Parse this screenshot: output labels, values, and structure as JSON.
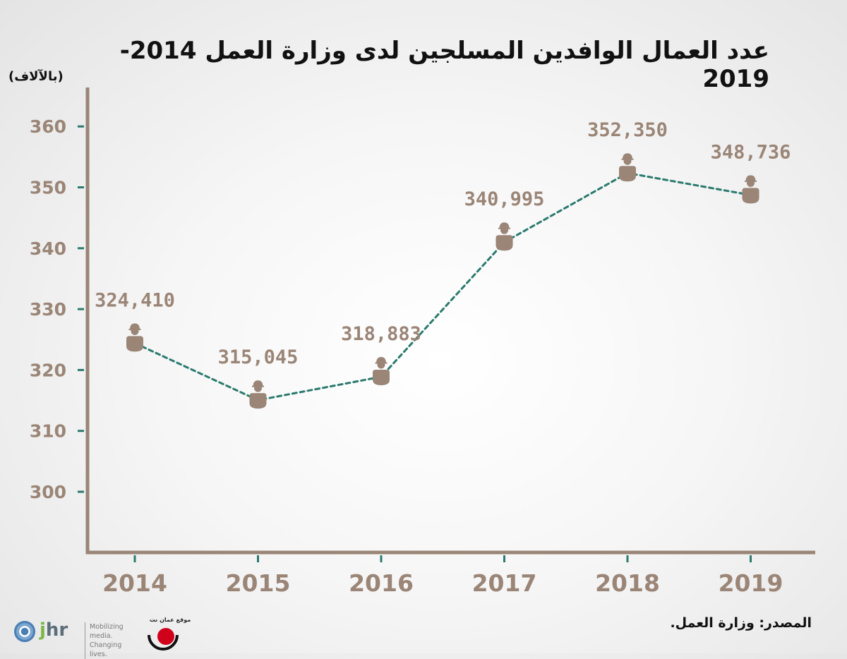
{
  "page": {
    "title": "عدد العمال الوافدين المسلجين لدى وزارة العمل 2014-2019",
    "unit_label": "(بالآلاف)",
    "source": "المصدر: وزارة العمل.",
    "logo_jhr_letter_j": "j",
    "logo_jhr_letters_hr": "hr",
    "logo_jhr_tagline_1": "Mobilizing media.",
    "logo_jhr_tagline_2": "Changing lives.",
    "logo_partner_text": "موقع عمان نت"
  },
  "chart_data": {
    "type": "line",
    "title": "عدد العمال الوافدين المسلجين لدى وزارة العمل 2014-2019",
    "ylabel": "(بالآلاف)",
    "xlabel": "",
    "categories": [
      "2014",
      "2015",
      "2016",
      "2017",
      "2018",
      "2019"
    ],
    "values": [
      324.41,
      315.045,
      318.883,
      340.995,
      352.35,
      348.736
    ],
    "data_labels": [
      "324,410",
      "315,045",
      "318,883",
      "340,995",
      "352,350",
      "348,736"
    ],
    "yticks": [
      300,
      310,
      320,
      330,
      340,
      350,
      360
    ],
    "ylim": [
      290,
      366
    ],
    "line_style": "dotted",
    "marker": "worker-with-helmet-icon",
    "colors": {
      "line": "#2a7a6e",
      "axis": "#9a8576",
      "tick": "#2a7a6e",
      "tick_label": "#9a8576",
      "data_label": "#9a8576",
      "marker": "#9a8576"
    }
  }
}
